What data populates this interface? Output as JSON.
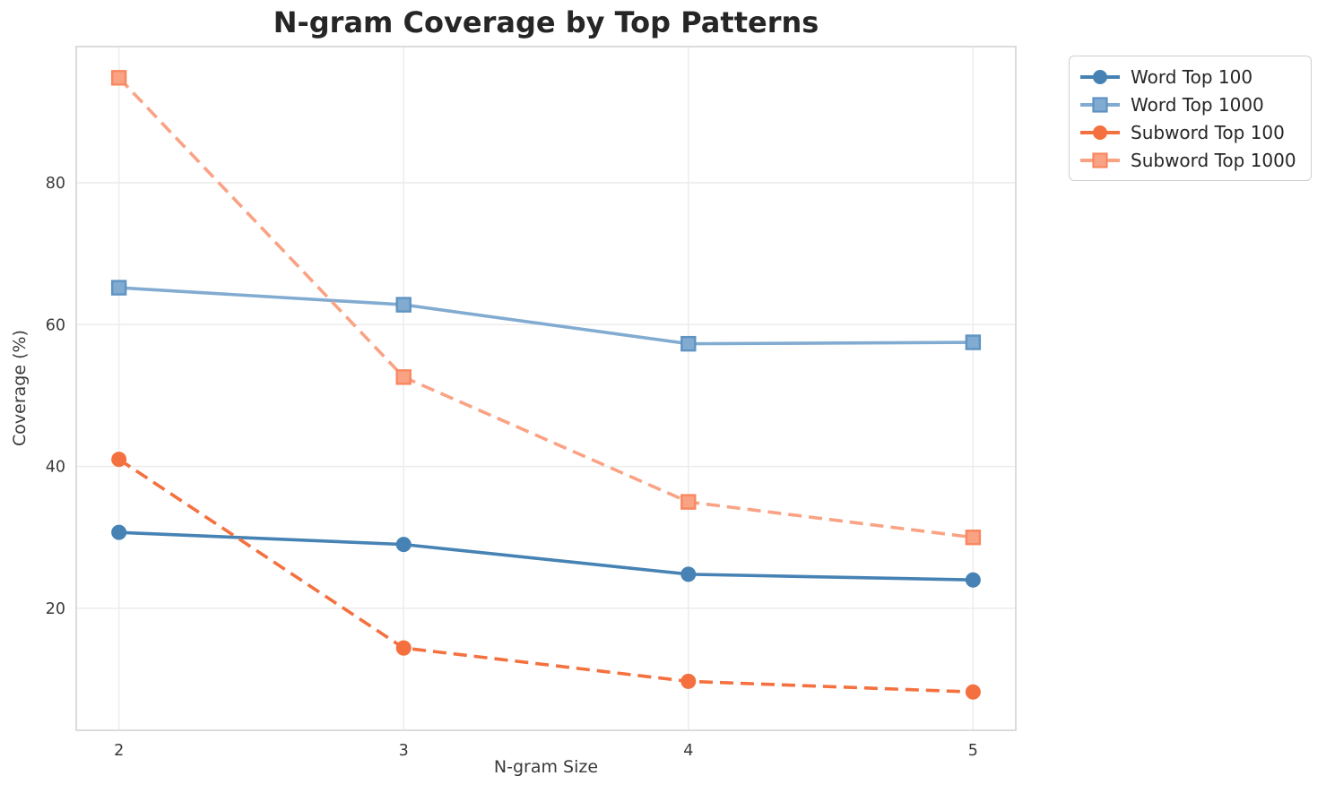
{
  "title": "N-gram Coverage by Top Patterns",
  "colors": {
    "background": "#ffffff",
    "grid": "#ececec",
    "frame": "#d8d8d8",
    "title_text": "#262626",
    "axis_text": "#3a3a3a",
    "legend_border": "#cfcfcf",
    "word_top_100": "#4682b4",
    "word_top_1000": "#82abd1",
    "subword_top_100": "#f4703f",
    "subword_top_1000": "#faa284"
  },
  "chart_data": {
    "type": "line",
    "title": "N-gram Coverage by Top Patterns",
    "xlabel": "N-gram Size",
    "ylabel": "Coverage (%)",
    "x": [
      2,
      3,
      4,
      5
    ],
    "xticks": [
      "2",
      "3",
      "4",
      "5"
    ],
    "yticks": [
      20,
      40,
      60,
      80
    ],
    "xlim": [
      1.85,
      5.15
    ],
    "ylim": [
      2.8,
      99.2
    ],
    "grid": true,
    "legend_position": "outside-top-right",
    "series": [
      {
        "name": "Word Top 100",
        "values": [
          30.7,
          29.0,
          24.8,
          24.0
        ],
        "color": "#4682b4",
        "line_style": "solid",
        "marker": "circle",
        "marker_edge": "#4682b4"
      },
      {
        "name": "Word Top 1000",
        "values": [
          65.2,
          62.8,
          57.3,
          57.5
        ],
        "color": "#82abd1",
        "line_style": "solid",
        "marker": "square",
        "marker_edge": "#5e93c2"
      },
      {
        "name": "Subword Top 100",
        "values": [
          41.0,
          14.4,
          9.7,
          8.2
        ],
        "color": "#f4703f",
        "line_style": "dashed",
        "marker": "circle",
        "marker_edge": "#f4703f"
      },
      {
        "name": "Subword Top 1000",
        "values": [
          94.8,
          52.6,
          35.0,
          30.0
        ],
        "color": "#faa284",
        "line_style": "dashed",
        "marker": "square",
        "marker_edge": "#f8875f"
      }
    ]
  }
}
